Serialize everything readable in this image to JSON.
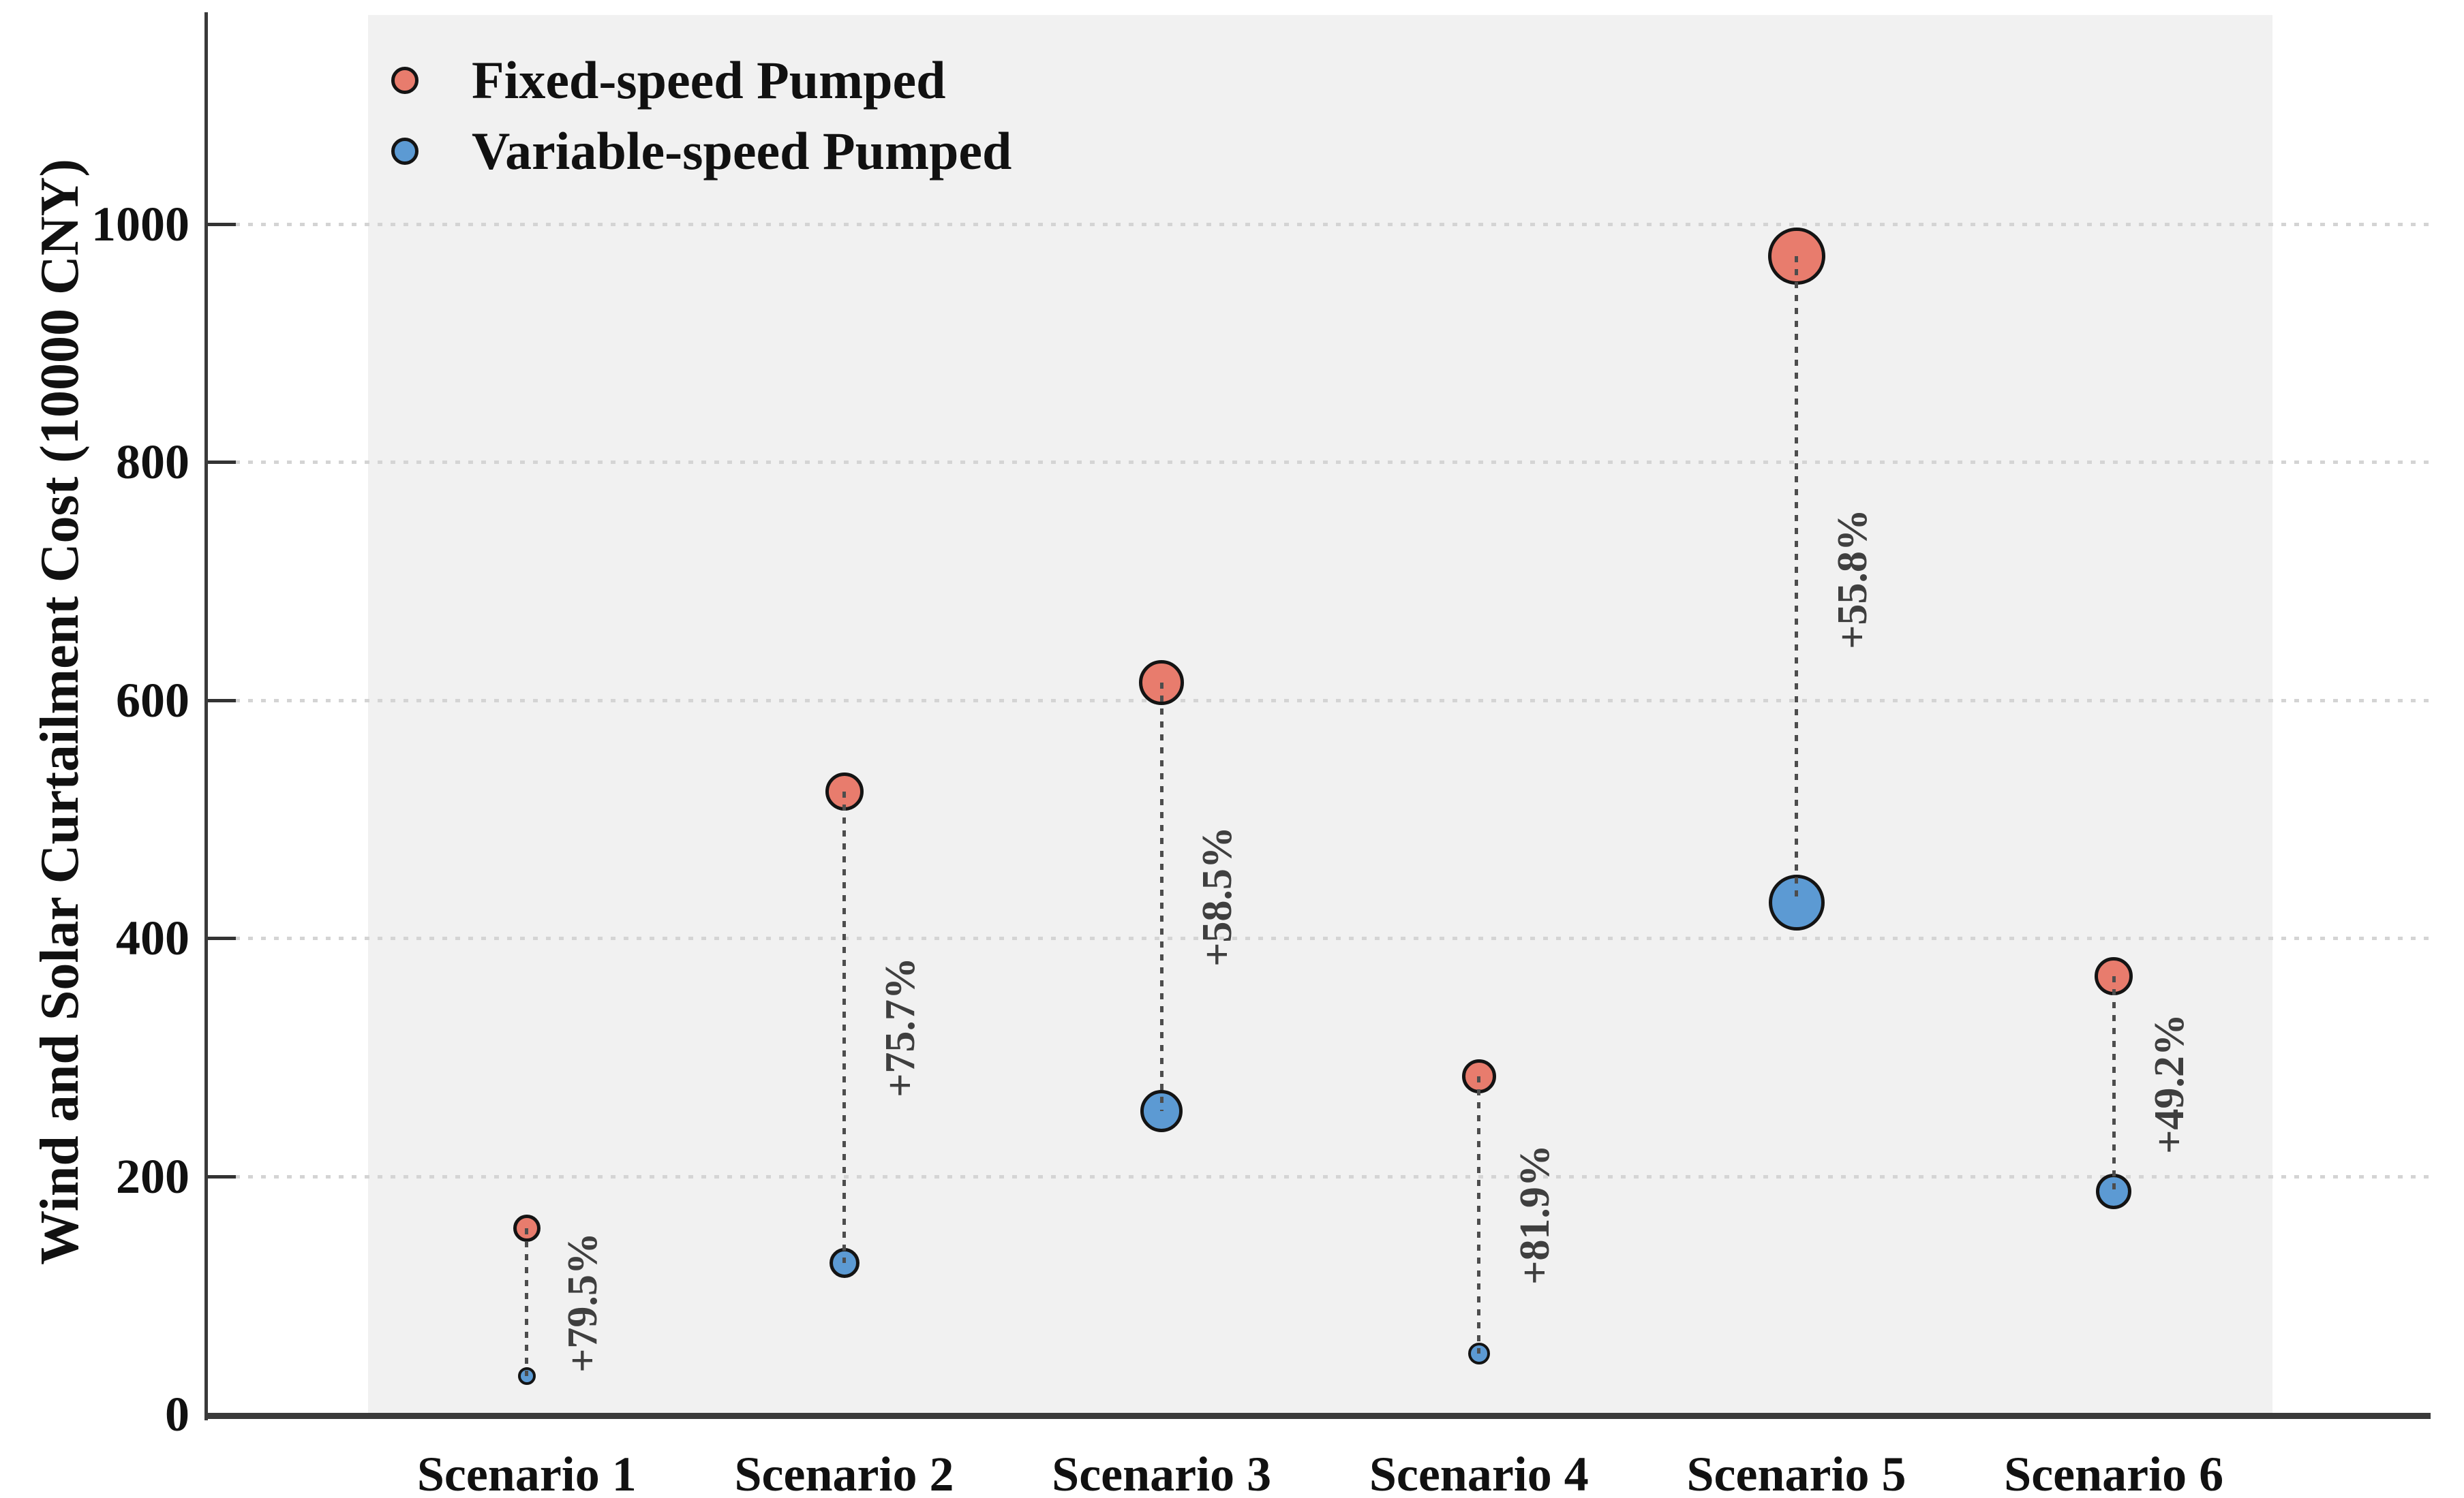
{
  "chart_data": {
    "type": "scatter",
    "subtype": "dumbbell-bubble",
    "title": "",
    "xlabel": "",
    "ylabel": "Wind and Solar Curtailment Cost (10000 CNY)",
    "categories": [
      "Scenario 1",
      "Scenario 2",
      "Scenario 3",
      "Scenario 4",
      "Scenario 5",
      "Scenario 6"
    ],
    "yticks": [
      0,
      200,
      400,
      600,
      800,
      1000
    ],
    "ytick_labels": [
      "0",
      "200",
      "400",
      "600",
      "800",
      "1000"
    ],
    "ylim": [
      0,
      1175
    ],
    "grid": "horizontal dotted",
    "legend_position": "top-left inside plot",
    "series": [
      {
        "name": "Fixed-speed Pumped",
        "color": "#E87C6D",
        "values": [
          156,
          523,
          615,
          284,
          973,
          368
        ],
        "marker_radii_px": [
          20,
          28,
          33,
          25,
          42,
          28
        ]
      },
      {
        "name": "Variable-speed Pumped",
        "color": "#5C9AD3",
        "values": [
          32,
          127,
          255,
          51,
          430,
          187
        ],
        "marker_radii_px": [
          13,
          22,
          31,
          16,
          41,
          26
        ]
      }
    ],
    "annotations": {
      "percent_increase_labels": [
        "+79.5%",
        "+75.7%",
        "+58.5%",
        "+81.9%",
        "+55.8%",
        "+49.2%"
      ],
      "label_rotation_deg": 90,
      "label_reading": "bottom-to-top, placed beside dotted connector between each pair of points"
    }
  },
  "colors": {
    "plot_panel_background": "#F1F1F1",
    "figure_background": "#FFFFFF",
    "marker_stroke": "#141414",
    "axis_line": "#3A3A3A",
    "gridline": "#D4D4D4",
    "connector_dotted_line": "#4D4D4D",
    "annotation_text": "#3F3F3F",
    "text": "#111111"
  }
}
